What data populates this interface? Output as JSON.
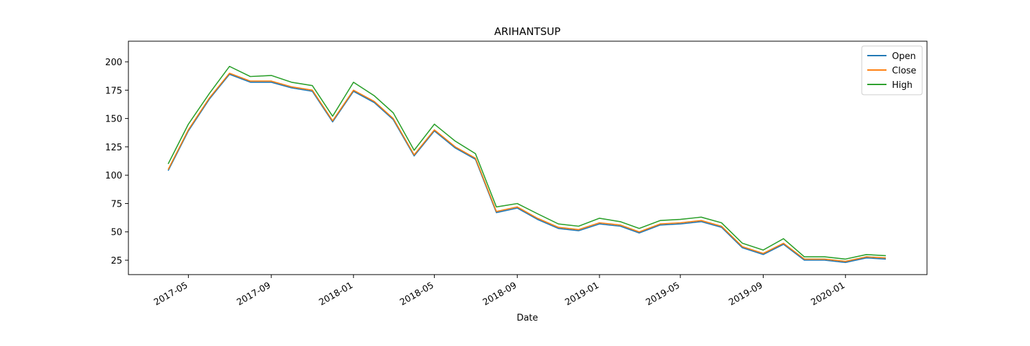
{
  "chart_data": {
    "type": "line",
    "title": "ARIHANTSUP",
    "x_label": "Date",
    "x": [
      "2017-04",
      "2017-05",
      "2017-06",
      "2017-07",
      "2017-08",
      "2017-09",
      "2017-10",
      "2017-11",
      "2017-12",
      "2018-01",
      "2018-02",
      "2018-03",
      "2018-04",
      "2018-05",
      "2018-06",
      "2018-07",
      "2018-08",
      "2018-09",
      "2018-10",
      "2018-11",
      "2018-12",
      "2019-01",
      "2019-02",
      "2019-03",
      "2019-04",
      "2019-05",
      "2019-06",
      "2019-07",
      "2019-08",
      "2019-09",
      "2019-10",
      "2019-11",
      "2019-12",
      "2020-01",
      "2020-02",
      "2020-03"
    ],
    "series": [
      {
        "name": "Open",
        "color": "#1f77b4",
        "values": [
          104,
          139,
          167,
          189,
          182,
          182,
          177,
          174,
          147,
          174,
          164,
          149,
          117,
          139,
          124,
          114,
          67,
          71,
          61,
          53,
          51,
          57,
          55,
          49,
          56,
          57,
          59,
          54,
          36,
          30,
          39,
          25,
          25,
          23,
          27,
          26
        ]
      },
      {
        "name": "Close",
        "color": "#ff7f0e",
        "values": [
          105,
          140,
          168,
          190,
          183,
          183,
          178,
          175,
          148,
          175,
          165,
          150,
          118,
          140,
          125,
          115,
          68,
          72,
          62,
          54,
          52,
          58,
          56,
          50,
          57,
          58,
          60,
          55,
          37,
          31,
          40,
          26,
          26,
          24,
          28,
          27
        ]
      },
      {
        "name": "High",
        "color": "#2ca02c",
        "values": [
          110,
          145,
          172,
          196,
          187,
          188,
          182,
          179,
          152,
          182,
          170,
          155,
          122,
          145,
          130,
          119,
          72,
          75,
          66,
          57,
          55,
          62,
          59,
          53,
          60,
          61,
          63,
          58,
          40,
          34,
          44,
          28,
          28,
          26,
          30,
          29
        ]
      }
    ],
    "xlim": [
      "2017-02",
      "2020-05"
    ],
    "xticks": [
      "2017-05",
      "2017-09",
      "2018-01",
      "2018-05",
      "2018-09",
      "2019-01",
      "2019-05",
      "2019-09",
      "2020-01"
    ],
    "ylim": [
      12.3,
      218.2
    ],
    "yticks": [
      25,
      50,
      75,
      100,
      125,
      150,
      175,
      200
    ],
    "grid": false,
    "legend": "upper right"
  }
}
